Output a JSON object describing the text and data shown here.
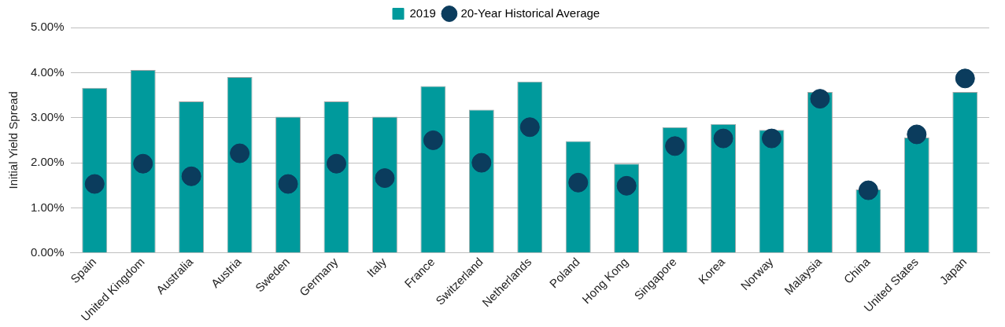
{
  "chart_data": {
    "type": "bar",
    "ylabel": "Initial Yield Spread",
    "categories": [
      "Spain",
      "United Kingdom",
      "Australia",
      "Austria",
      "Sweden",
      "Germany",
      "Italy",
      "France",
      "Switzerland",
      "Netherlands",
      "Poland",
      "Hong Kong",
      "Singapore",
      "Korea",
      "Norway",
      "Malaysia",
      "China",
      "United States",
      "Japan"
    ],
    "series": [
      {
        "name": "2019",
        "color": "#009a9c",
        "values": [
          3.66,
          4.06,
          3.36,
          3.9,
          3.02,
          3.36,
          3.02,
          3.7,
          3.18,
          3.8,
          2.48,
          1.98,
          2.79,
          2.86,
          2.73,
          3.57,
          1.41,
          2.56,
          3.57
        ]
      },
      {
        "name": "20-Year Historical Average",
        "type": "scatter",
        "color": "#0b3c5d",
        "values": [
          1.53,
          1.98,
          1.7,
          2.21,
          1.53,
          1.98,
          1.66,
          2.5,
          2.0,
          2.79,
          1.56,
          1.49,
          2.37,
          2.54,
          2.54,
          3.42,
          1.39,
          2.63,
          3.87
        ]
      }
    ],
    "ylim": [
      0,
      5
    ],
    "yticks": [
      {
        "value": 0,
        "label": "0.00%"
      },
      {
        "value": 1,
        "label": "1.00%"
      },
      {
        "value": 2,
        "label": "2.00%"
      },
      {
        "value": 3,
        "label": "3.00%"
      },
      {
        "value": 4,
        "label": "4.00%"
      },
      {
        "value": 5,
        "label": "5.00%"
      }
    ],
    "grid": "y",
    "legend": "top",
    "marker": "circle"
  }
}
